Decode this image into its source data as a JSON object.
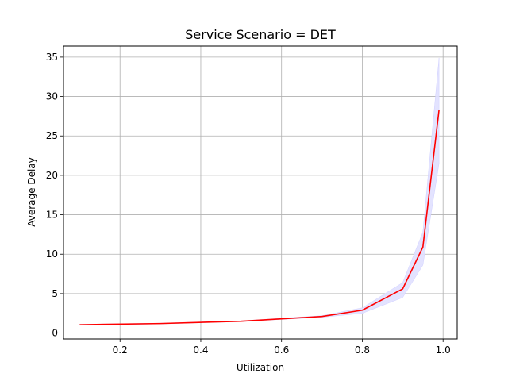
{
  "chart_data": {
    "type": "line",
    "title": "Service Scenario = DET",
    "xlabel": "Utilization",
    "ylabel": "Average Delay",
    "xlim": [
      0.06,
      1.035
    ],
    "ylim": [
      -0.75,
      36.4
    ],
    "xticks": [
      0.2,
      0.4,
      0.6,
      0.8,
      1.0
    ],
    "xtick_labels": [
      "0.2",
      "0.4",
      "0.6",
      "0.8",
      "1.0"
    ],
    "yticks": [
      0,
      5,
      10,
      15,
      20,
      25,
      30,
      35
    ],
    "ytick_labels": [
      "0",
      "5",
      "10",
      "15",
      "20",
      "25",
      "30",
      "35"
    ],
    "grid": true,
    "line_color": "#ff0000",
    "band_color": "#e0e0ff",
    "series": [
      {
        "x": [
          0.1,
          0.3,
          0.5,
          0.7,
          0.8,
          0.9,
          0.95,
          0.99
        ],
        "values": [
          1.05,
          1.2,
          1.5,
          2.1,
          2.9,
          5.6,
          10.9,
          28.3
        ],
        "lower": [
          1.0,
          1.15,
          1.45,
          2.0,
          2.5,
          4.5,
          8.6,
          21.5
        ],
        "upper": [
          1.1,
          1.25,
          1.55,
          2.2,
          3.2,
          6.4,
          12.8,
          34.9
        ]
      }
    ]
  }
}
